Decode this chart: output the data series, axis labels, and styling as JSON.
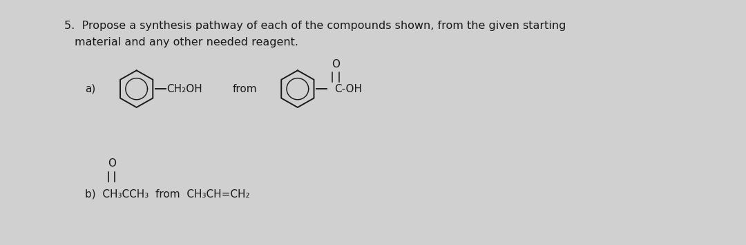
{
  "background_color": "#d0d0d0",
  "text_color": "#1a1a1a",
  "title_line1": "5.  Propose a synthesis pathway of each of the compounds shown, from the given starting",
  "title_line2": "     material and any other needed reagent.",
  "part_a_label": "a)",
  "part_b_label": "b)",
  "font_size_main": 11.5,
  "font_size_chem": 11.0
}
